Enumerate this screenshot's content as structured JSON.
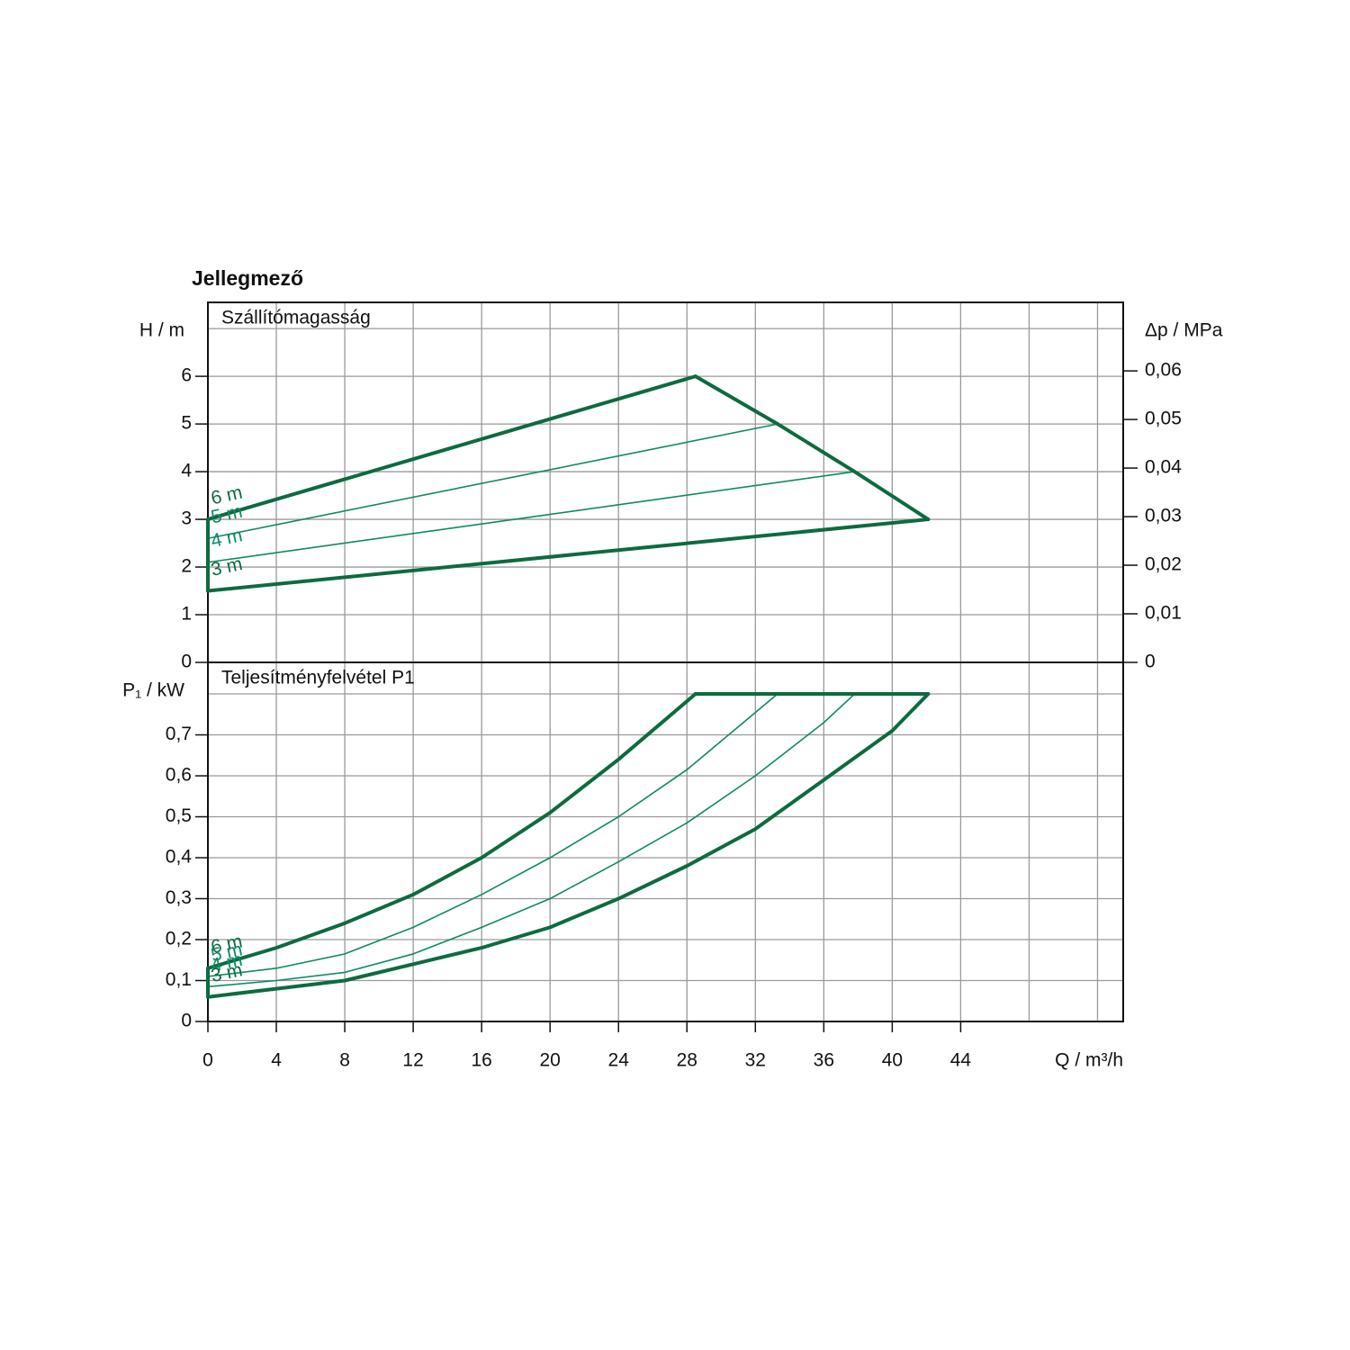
{
  "chart_data": [
    {
      "type": "line",
      "title": "Jellegmező",
      "subtitle": "Szállítómagasság",
      "ylabel": "H / m",
      "y2label": "Δp / MPa",
      "xlim": [
        0,
        53.5
      ],
      "xgrid": [
        0,
        4,
        8,
        12,
        16,
        20,
        24,
        28,
        32,
        36,
        40,
        44,
        48,
        52
      ],
      "ylim": [
        0,
        7.55
      ],
      "yticks": [
        0,
        1,
        2,
        3,
        4,
        5,
        6
      ],
      "ygrid": [
        1,
        2,
        3,
        4,
        5,
        6,
        7
      ],
      "y2lim": [
        0,
        0.0741
      ],
      "y2ticks": [
        0,
        {
          "value": 0.01,
          "label": "0,01"
        },
        {
          "value": 0.02,
          "label": "0,02"
        },
        {
          "value": 0.03,
          "label": "0,03"
        },
        {
          "value": 0.04,
          "label": "0,04"
        },
        {
          "value": 0.05,
          "label": "0,05"
        },
        {
          "value": 0.06,
          "label": "0,06"
        }
      ],
      "grid": true,
      "series": [
        {
          "name": "6 m",
          "color": "#0d6b3f",
          "width": 4,
          "x": [
            0,
            28.5
          ],
          "values": [
            3,
            6
          ]
        },
        {
          "name": "5 m",
          "color": "#0e8a64",
          "width": 1.6,
          "x": [
            0,
            33.3
          ],
          "values": [
            2.6,
            5
          ]
        },
        {
          "name": "4 m",
          "color": "#0e8a64",
          "width": 1.6,
          "x": [
            0,
            37.8
          ],
          "values": [
            2.1,
            4
          ]
        },
        {
          "name": "3 m",
          "color": "#0d6b3f",
          "width": 4,
          "x": [
            0,
            42.1
          ],
          "values": [
            1.5,
            3
          ]
        },
        {
          "color": "#0d6b3f",
          "width": 4,
          "x": [
            28.5,
            33.3,
            37.8,
            42.1
          ],
          "values": [
            6,
            5,
            4,
            3
          ]
        },
        {
          "color": "#0d6b3f",
          "width": 4,
          "x": [
            0,
            0
          ],
          "values": [
            1.5,
            3
          ]
        }
      ]
    },
    {
      "type": "line",
      "subtitle": "Teljesítményfelvétel P1",
      "ylabel": "P₁ / kW",
      "xlabel": "Q / m³/h",
      "xlim": [
        0,
        53.5
      ],
      "xticks": [
        0,
        4,
        8,
        12,
        16,
        20,
        24,
        28,
        32,
        36,
        40,
        44
      ],
      "xgrid": [
        0,
        4,
        8,
        12,
        16,
        20,
        24,
        28,
        32,
        36,
        40,
        44,
        48,
        52
      ],
      "ylim": [
        0,
        0.877
      ],
      "yticks": [
        0,
        {
          "value": 0.1,
          "label": "0,1"
        },
        {
          "value": 0.2,
          "label": "0,2"
        },
        {
          "value": 0.3,
          "label": "0,3"
        },
        {
          "value": 0.4,
          "label": "0,4"
        },
        {
          "value": 0.5,
          "label": "0,5"
        },
        {
          "value": 0.6,
          "label": "0,6"
        },
        {
          "value": 0.7,
          "label": "0,7"
        }
      ],
      "ygrid": [
        0.1,
        0.2,
        0.3,
        0.4,
        0.5,
        0.6,
        0.7,
        0.8
      ],
      "grid": true,
      "series": [
        {
          "name": "6 m",
          "color": "#0d6b3f",
          "width": 4,
          "x": [
            0,
            4,
            8,
            12,
            16,
            20,
            24,
            28.5
          ],
          "values": [
            0.13,
            0.18,
            0.24,
            0.31,
            0.4,
            0.51,
            0.64,
            0.8
          ]
        },
        {
          "name": "5 m",
          "color": "#0e8a64",
          "width": 1.6,
          "x": [
            0,
            4,
            8,
            12,
            16,
            20,
            24,
            28,
            33.3
          ],
          "values": [
            0.11,
            0.13,
            0.165,
            0.23,
            0.31,
            0.4,
            0.5,
            0.615,
            0.8
          ]
        },
        {
          "name": "4 m",
          "color": "#0e8a64",
          "width": 1.6,
          "x": [
            0,
            4,
            8,
            12,
            16,
            20,
            24,
            28,
            32,
            36,
            37.8
          ],
          "values": [
            0.085,
            0.1,
            0.12,
            0.165,
            0.23,
            0.3,
            0.39,
            0.485,
            0.6,
            0.73,
            0.8
          ]
        },
        {
          "name": "3 m",
          "color": "#0d6b3f",
          "width": 4,
          "x": [
            0,
            4,
            8,
            12,
            16,
            20,
            24,
            28,
            32,
            36,
            40,
            42.1
          ],
          "values": [
            0.06,
            0.08,
            0.1,
            0.14,
            0.18,
            0.23,
            0.3,
            0.38,
            0.47,
            0.59,
            0.71,
            0.8
          ]
        },
        {
          "color": "#0d6b3f",
          "width": 4,
          "x": [
            28.5,
            42.1
          ],
          "values": [
            0.8,
            0.8
          ]
        },
        {
          "color": "#0d6b3f",
          "width": 4,
          "x": [
            0,
            0
          ],
          "values": [
            0.06,
            0.13
          ]
        }
      ]
    }
  ]
}
